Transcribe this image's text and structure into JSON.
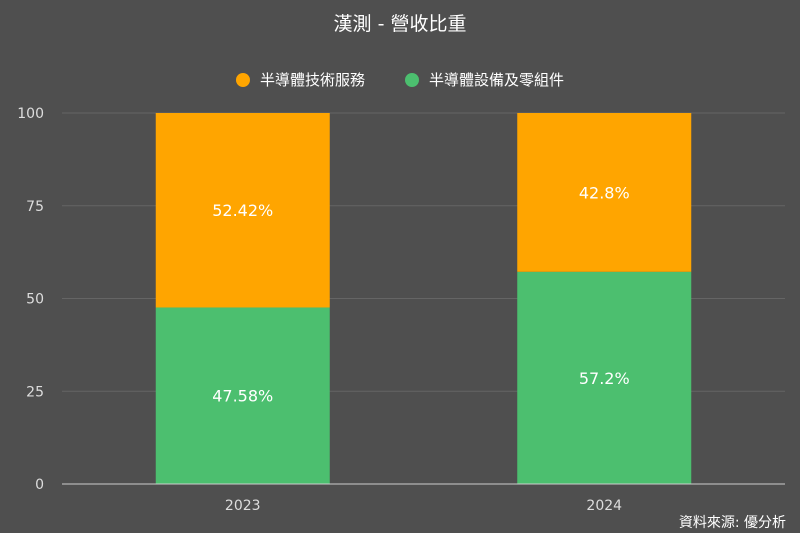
{
  "chart_data": {
    "type": "bar",
    "stacked": true,
    "title": "漢測 - 營收比重",
    "categories": [
      "2023",
      "2024"
    ],
    "series": [
      {
        "name": "半導體設備及零組件",
        "values": [
          47.58,
          57.2
        ],
        "labels": [
          "47.58%",
          "57.2%"
        ],
        "color": "#4cbf6f"
      },
      {
        "name": "半導體技術服務",
        "values": [
          52.42,
          42.8
        ],
        "labels": [
          "52.42%",
          "42.8%"
        ],
        "color": "#ffa500"
      }
    ],
    "legend_order": [
      1,
      0
    ],
    "legend_position": "top-center",
    "ylim": [
      0,
      100
    ],
    "yticks": [
      0,
      25,
      50,
      75,
      100
    ],
    "grid": true,
    "source": "資料來源: 優分析"
  },
  "colors": {
    "background": "#4f4f4f",
    "grid": "#656565",
    "axis": "#cccccc",
    "text": "#ffffff",
    "tick_text": "#dddddd"
  }
}
